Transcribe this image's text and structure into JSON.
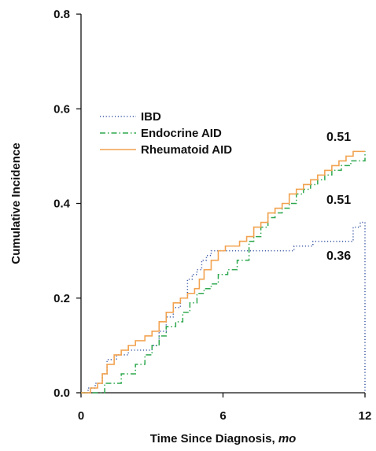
{
  "chart_data": {
    "type": "line",
    "step": true,
    "xlabel_main": "Time Since Diagnosis, ",
    "xlabel_unit": "mo",
    "ylabel": "Cumulative Incidence",
    "xlim": [
      0,
      12
    ],
    "ylim": [
      0,
      0.8
    ],
    "xticks": [
      0,
      6,
      12
    ],
    "yticks": [
      "0.0",
      "0.2",
      "0.4",
      "0.6",
      "0.8"
    ],
    "legend": {
      "position": "upper-left"
    },
    "series": [
      {
        "name": "IBD",
        "style": "dotted",
        "color": "#3d5aa6",
        "end_label": "0.36",
        "x": [
          0,
          0.3,
          0.6,
          0.9,
          1.1,
          1.5,
          2.0,
          2.5,
          3.0,
          3.3,
          3.6,
          3.9,
          4.2,
          4.5,
          4.7,
          4.9,
          5.1,
          5.3,
          5.5,
          5.7,
          6.0,
          6.5,
          7.0,
          8.0,
          9.0,
          9.5,
          9.8,
          10.2,
          11.0,
          11.5,
          11.8,
          12.0
        ],
        "y": [
          0,
          0.01,
          0.02,
          0.04,
          0.07,
          0.08,
          0.09,
          0.09,
          0.1,
          0.13,
          0.16,
          0.18,
          0.2,
          0.24,
          0.25,
          0.26,
          0.28,
          0.29,
          0.3,
          0.3,
          0.3,
          0.3,
          0.3,
          0.3,
          0.31,
          0.31,
          0.32,
          0.32,
          0.32,
          0.35,
          0.36,
          0.36
        ]
      },
      {
        "name": "Endocrine AID",
        "style": "dashdot",
        "color": "#2fa84f",
        "end_label": "0.51",
        "x": [
          0,
          1.0,
          1.7,
          2.3,
          2.7,
          3.0,
          3.3,
          3.6,
          4.0,
          4.3,
          4.6,
          4.9,
          5.2,
          5.5,
          5.8,
          6.2,
          6.6,
          7.1,
          7.3,
          7.6,
          7.9,
          8.2,
          8.5,
          8.8,
          9.1,
          9.4,
          9.7,
          10.0,
          10.3,
          10.6,
          11.0,
          11.4,
          11.7,
          12.0
        ],
        "y": [
          0,
          0.02,
          0.04,
          0.06,
          0.08,
          0.1,
          0.12,
          0.14,
          0.15,
          0.17,
          0.19,
          0.21,
          0.22,
          0.23,
          0.25,
          0.26,
          0.28,
          0.32,
          0.33,
          0.35,
          0.37,
          0.38,
          0.39,
          0.4,
          0.42,
          0.43,
          0.44,
          0.45,
          0.46,
          0.47,
          0.48,
          0.49,
          0.49,
          0.51
        ]
      },
      {
        "name": "Rheumatoid AID",
        "style": "solid",
        "color": "#f2a24f",
        "end_label": "0.51",
        "x": [
          0,
          0.4,
          0.7,
          0.9,
          1.1,
          1.4,
          1.7,
          2.0,
          2.3,
          2.7,
          3.0,
          3.3,
          3.6,
          3.9,
          4.2,
          4.5,
          4.8,
          5.0,
          5.2,
          5.5,
          5.8,
          6.1,
          6.4,
          6.7,
          7.0,
          7.3,
          7.6,
          7.9,
          8.2,
          8.5,
          8.8,
          9.1,
          9.4,
          9.7,
          10.0,
          10.3,
          10.6,
          10.9,
          11.2,
          11.5,
          11.8,
          12.0
        ],
        "y": [
          0,
          0.01,
          0.02,
          0.04,
          0.06,
          0.08,
          0.09,
          0.1,
          0.11,
          0.12,
          0.13,
          0.15,
          0.17,
          0.19,
          0.2,
          0.21,
          0.22,
          0.24,
          0.26,
          0.28,
          0.3,
          0.31,
          0.31,
          0.32,
          0.33,
          0.35,
          0.36,
          0.38,
          0.39,
          0.4,
          0.42,
          0.43,
          0.44,
          0.45,
          0.46,
          0.47,
          0.48,
          0.49,
          0.5,
          0.51,
          0.51,
          0.51
        ]
      }
    ]
  }
}
